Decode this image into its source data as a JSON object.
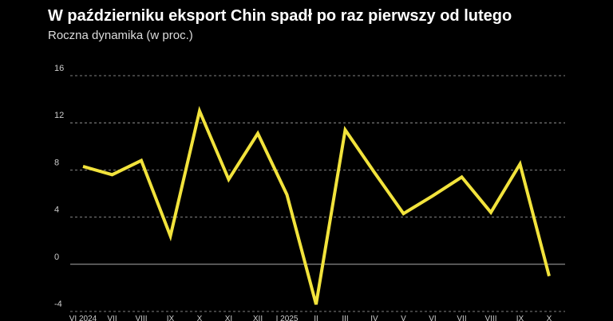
{
  "chart_data": {
    "type": "line",
    "title": "W październiku eksport Chin spadł po raz pierwszy od lutego",
    "subtitle": "Roczna dynamika (w proc.)",
    "categories": [
      "VI 2024",
      "VII",
      "VIII",
      "IX",
      "X",
      "XI",
      "XII",
      "I 2025",
      "II",
      "III",
      "IV",
      "V",
      "VI",
      "VII",
      "VIII",
      "IX",
      "X"
    ],
    "series": [
      {
        "name": "Eksport",
        "color": "#f2e33c",
        "values": [
          8.3,
          7.6,
          8.8,
          2.4,
          13.0,
          7.2,
          11.1,
          5.9,
          -3.4,
          11.4,
          7.8,
          4.3,
          5.8,
          7.4,
          4.4,
          8.5,
          -1.0
        ]
      }
    ],
    "ylim": [
      -4,
      16
    ],
    "yticks": [
      16,
      12,
      8,
      4,
      0,
      -4
    ],
    "grid": true
  }
}
